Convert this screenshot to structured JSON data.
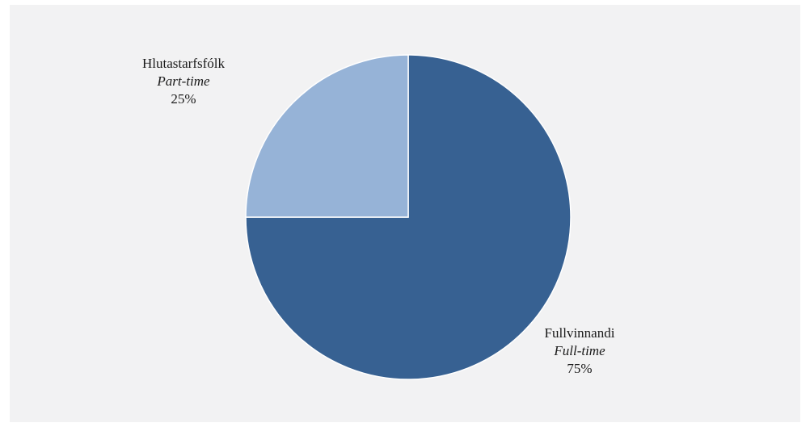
{
  "chart_data": {
    "type": "pie",
    "title": "",
    "start_angle_deg": 0,
    "direction": "clockwise",
    "slices": [
      {
        "label_is": "Fullvinnandi",
        "label_en": "Full-time",
        "value": 75,
        "value_label": "75%",
        "color": "#376192"
      },
      {
        "label_is": "Hlutastarfsfólk",
        "label_en": "Part-time",
        "value": 25,
        "value_label": "25%",
        "color": "#96b3d7"
      }
    ]
  },
  "colors": {
    "background": "#f2f2f3",
    "slice_border": "#ffffff"
  }
}
